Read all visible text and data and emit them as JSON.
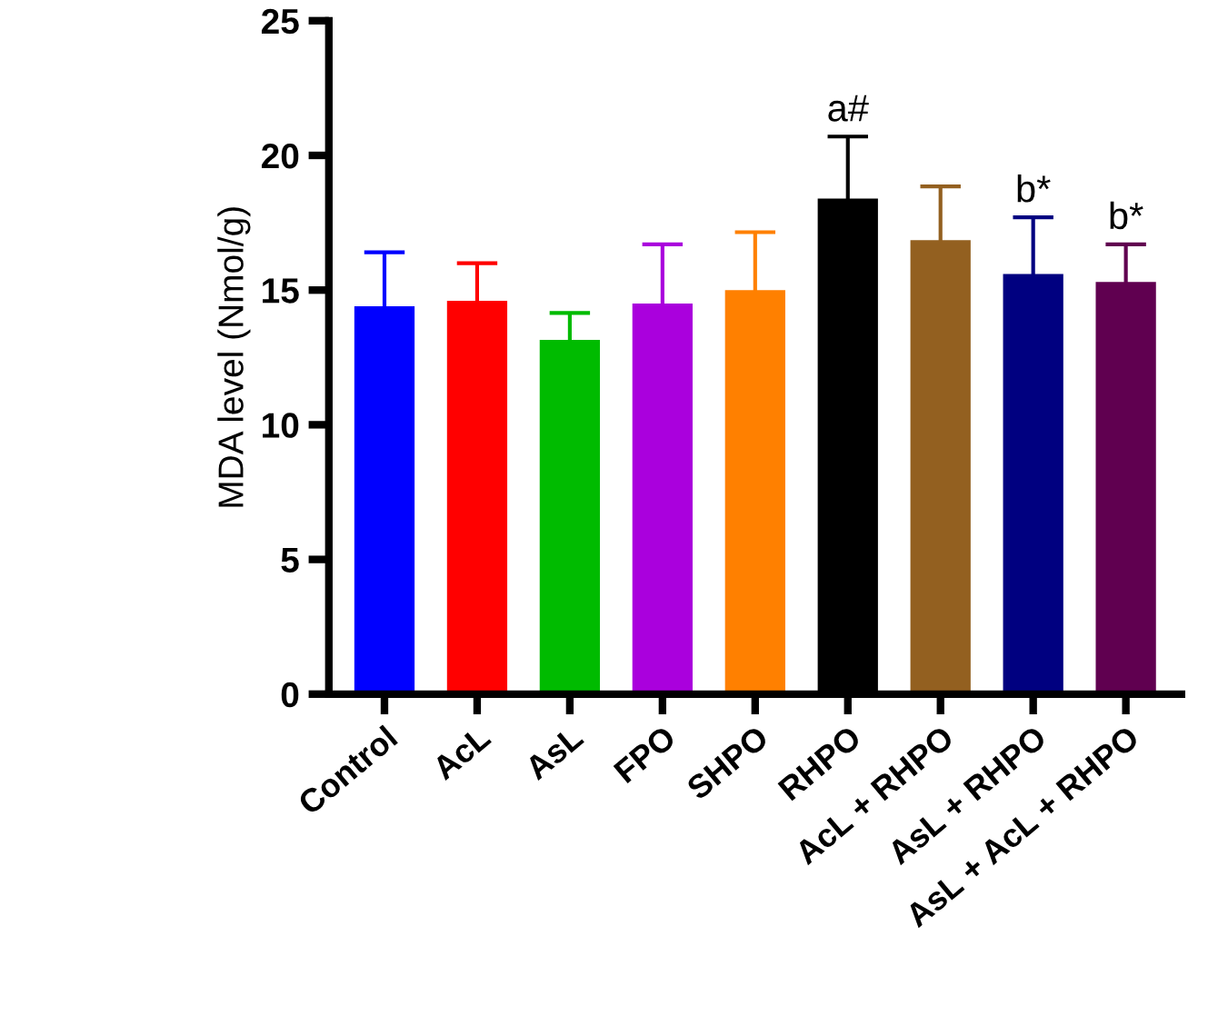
{
  "chart_data": {
    "type": "bar",
    "ylabel": "MDA level (Nmol/g)",
    "categories": [
      "Control",
      "AcL",
      "AsL",
      "FPO",
      "SHPO",
      "RHPO",
      "AcL + RHPO",
      "AsL + RHPO",
      "AsL + AcL + RHPO"
    ],
    "values": [
      14.4,
      14.6,
      13.15,
      14.5,
      15.0,
      18.4,
      16.85,
      15.6,
      15.3
    ],
    "colors": [
      "#0000ff",
      "#ff0000",
      "#00bb00",
      "#aa00dd",
      "#ff8000",
      "#000000",
      "#936020",
      "#000080",
      "#600050"
    ],
    "errors": [
      2.0,
      1.4,
      1.0,
      2.2,
      2.15,
      2.3,
      2.0,
      2.1,
      1.4
    ],
    "ylim": [
      0,
      25
    ],
    "yticks": [
      0,
      5,
      10,
      15,
      20,
      25
    ],
    "grid": false,
    "annotations": [
      {
        "text": "a#",
        "x": "RHPO",
        "y": 18.4
      },
      {
        "text": "b*",
        "x": "AsL + RHPO",
        "y": 15.6
      },
      {
        "text": "b*",
        "x": "AsL + AcL + RHPO",
        "y": 15.3
      }
    ]
  }
}
